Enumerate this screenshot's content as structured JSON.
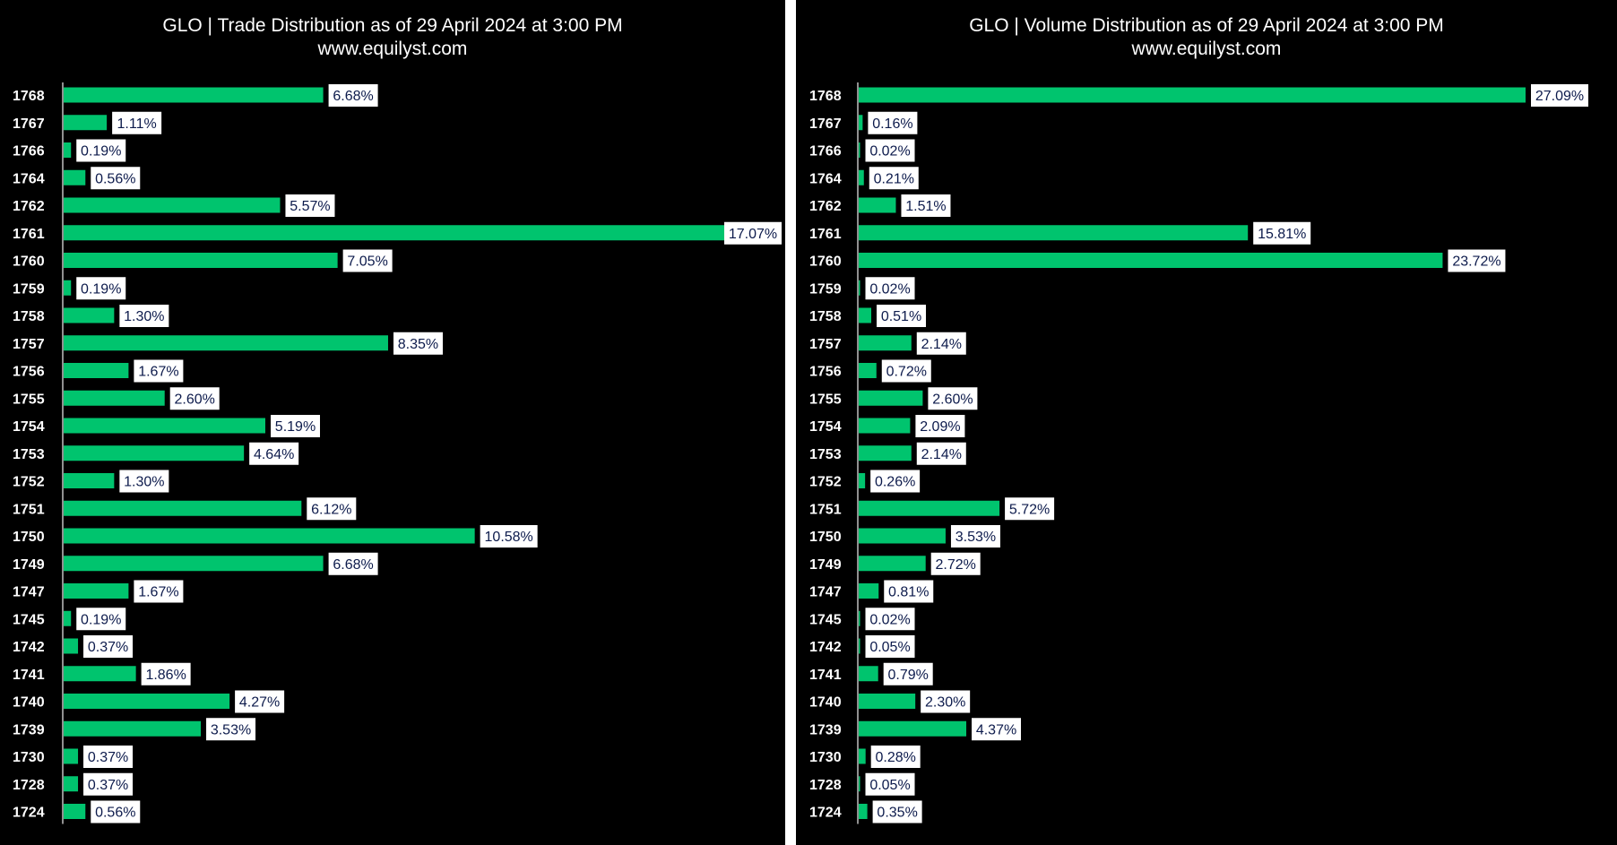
{
  "colors": {
    "bar": "#00c46e",
    "background": "#000000",
    "axis": "#bfbfbf",
    "label_box": "#ffffff",
    "label_text": "#0d1b4c",
    "tick_text": "#ffffff"
  },
  "panels": [
    {
      "title": "GLO | Trade Distribution as of 29 April 2024 at 3:00 PM",
      "subtitle": "www.equilyst.com"
    },
    {
      "title": "GLO | Volume Distribution as of 29 April 2024 at 3:00 PM",
      "subtitle": "www.equilyst.com"
    }
  ],
  "chart_data": [
    {
      "type": "bar",
      "orientation": "horizontal",
      "title": "GLO | Trade Distribution as of 29 April 2024 at 3:00 PM",
      "subtitle": "www.equilyst.com",
      "categories": [
        "1768",
        "1767",
        "1766",
        "1764",
        "1762",
        "1761",
        "1760",
        "1759",
        "1758",
        "1757",
        "1756",
        "1755",
        "1754",
        "1753",
        "1752",
        "1751",
        "1750",
        "1749",
        "1747",
        "1745",
        "1742",
        "1741",
        "1740",
        "1739",
        "1730",
        "1728",
        "1724"
      ],
      "values": [
        6.68,
        1.11,
        0.19,
        0.56,
        5.57,
        17.07,
        7.05,
        0.19,
        1.3,
        8.35,
        1.67,
        2.6,
        5.19,
        4.64,
        1.3,
        6.12,
        10.58,
        6.68,
        1.67,
        0.19,
        0.37,
        1.86,
        4.27,
        3.53,
        0.37,
        0.37,
        0.56
      ],
      "labels": [
        "6.68%",
        "1.11%",
        "0.19%",
        "0.56%",
        "5.57%",
        "17.07%",
        "7.05%",
        "0.19%",
        "1.30%",
        "8.35%",
        "1.67%",
        "2.60%",
        "5.19%",
        "4.64%",
        "1.30%",
        "6.12%",
        "10.58%",
        "6.68%",
        "1.67%",
        "0.19%",
        "0.37%",
        "1.86%",
        "4.27%",
        "3.53%",
        "0.37%",
        "0.37%",
        "0.56%"
      ],
      "xlim": [
        0,
        17.07
      ],
      "grid": false,
      "legend": "none"
    },
    {
      "type": "bar",
      "orientation": "horizontal",
      "title": "GLO | Volume Distribution as of 29 April 2024 at 3:00 PM",
      "subtitle": "www.equilyst.com",
      "categories": [
        "1768",
        "1767",
        "1766",
        "1764",
        "1762",
        "1761",
        "1760",
        "1759",
        "1758",
        "1757",
        "1756",
        "1755",
        "1754",
        "1753",
        "1752",
        "1751",
        "1750",
        "1749",
        "1747",
        "1745",
        "1742",
        "1741",
        "1740",
        "1739",
        "1730",
        "1728",
        "1724"
      ],
      "values": [
        27.09,
        0.16,
        0.02,
        0.21,
        1.51,
        15.81,
        23.72,
        0.02,
        0.51,
        2.14,
        0.72,
        2.6,
        2.09,
        2.14,
        0.26,
        5.72,
        3.53,
        2.72,
        0.81,
        0.02,
        0.05,
        0.79,
        2.3,
        4.37,
        0.28,
        0.05,
        0.35
      ],
      "labels": [
        "27.09%",
        "0.16%",
        "0.02%",
        "0.21%",
        "1.51%",
        "15.81%",
        "23.72%",
        "0.02%",
        "0.51%",
        "2.14%",
        "0.72%",
        "2.60%",
        "2.09%",
        "2.14%",
        "0.26%",
        "5.72%",
        "3.53%",
        "2.72%",
        "0.81%",
        "0.02%",
        "0.05%",
        "0.79%",
        "2.30%",
        "4.37%",
        "0.28%",
        "0.05%",
        "0.35%"
      ],
      "xlim": [
        0,
        27.09
      ],
      "grid": false,
      "legend": "none"
    }
  ]
}
